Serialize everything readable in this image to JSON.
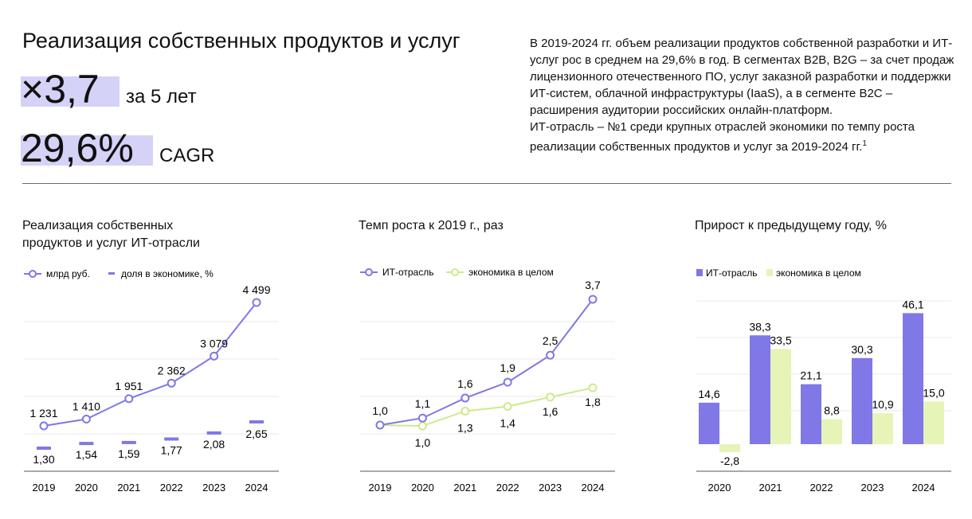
{
  "header": {
    "title": "Реализация собственных продуктов и услуг",
    "multiplier": "×3,7",
    "multiplier_suffix": "за 5 лет",
    "cagr": "29,6%",
    "cagr_suffix": "CAGR"
  },
  "summary": {
    "p1": "В 2019-2024 гг. объем реализации продуктов собственной разработки и ИТ-услуг рос в среднем на 29,6% в год. В сегментах B2B, B2G – за счет продаж лицензионного отечественного ПО, услуг заказной разработки и поддержки ИТ-систем, облачной инфраструктуры (IaaS), а в сегменте B2C – расширения аудитории российских онлайн-платформ.",
    "p2": "ИТ-отрасль – №1 среди крупных отраслей экономики по темпу роста реализации собственных продуктов и услуг за 2019-2024 гг.",
    "p2_footnote": "1"
  },
  "colors": {
    "it": "#7f78e6",
    "economy": "#cdea8c",
    "economy_bar": "#e6f4b8",
    "grid": "#e8e8e8",
    "axis": "#555555"
  },
  "chart_data": [
    {
      "type": "line",
      "title": "Реализация собственных продуктов и услуг ИТ-отрасли",
      "categories": [
        "2019",
        "2020",
        "2021",
        "2022",
        "2023",
        "2024"
      ],
      "series": [
        {
          "name": "млрд руб.",
          "kind": "line",
          "values": [
            1231,
            1410,
            1951,
            2362,
            3079,
            4499
          ],
          "labels": [
            "1 231",
            "1 410",
            "1 951",
            "2 362",
            "3 079",
            "4 499"
          ]
        },
        {
          "name": "доля в экономике, %",
          "kind": "dash",
          "values": [
            1.3,
            1.54,
            1.59,
            1.77,
            2.08,
            2.65
          ],
          "labels": [
            "1,30",
            "1,54",
            "1,59",
            "1,77",
            "2,08",
            "2,65"
          ]
        }
      ],
      "legend": "top-left",
      "grid": true
    },
    {
      "type": "line",
      "title": "Темп роста к 2019 г., раз",
      "categories": [
        "2019",
        "2020",
        "2021",
        "2022",
        "2023",
        "2024"
      ],
      "series": [
        {
          "name": "ИТ-отрасль",
          "values": [
            1.0,
            1.15,
            1.58,
            1.92,
            2.5,
            3.7
          ],
          "labels": [
            "1,0",
            "1,1",
            "1,6",
            "1,9",
            "2,5",
            "3,7"
          ]
        },
        {
          "name": "экономика в целом",
          "values": [
            1.0,
            0.98,
            1.3,
            1.4,
            1.6,
            1.8
          ],
          "labels": [
            "",
            "1,0",
            "1,3",
            "1,4",
            "1,6",
            "1,8"
          ]
        }
      ],
      "legend": "top-left",
      "grid": true
    },
    {
      "type": "bar",
      "title": "Прирост к предыдущему году, %",
      "categories": [
        "2020",
        "2021",
        "2022",
        "2023",
        "2024"
      ],
      "series": [
        {
          "name": "ИТ-отрасль",
          "values": [
            14.6,
            38.3,
            21.1,
            30.3,
            46.1
          ],
          "labels": [
            "14,6",
            "38,3",
            "21,1",
            "30,3",
            "46,1"
          ]
        },
        {
          "name": "экономика в целом",
          "values": [
            -2.8,
            33.5,
            8.8,
            10.9,
            15.0
          ],
          "labels": [
            "-2,8",
            "33,5",
            "8,8",
            "10,9",
            "15,0"
          ]
        }
      ],
      "legend": "top-left",
      "grid": true
    }
  ]
}
